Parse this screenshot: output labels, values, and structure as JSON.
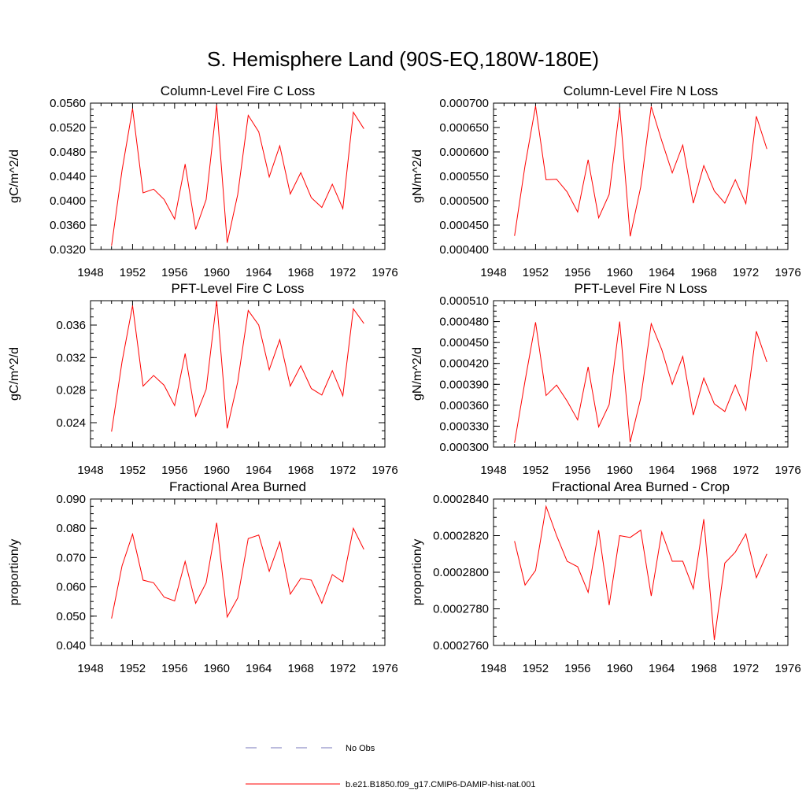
{
  "title": "S. Hemisphere Land (90S-EQ,180W-180E)",
  "legend": [
    {
      "label": "No Obs",
      "color": "#8888cc",
      "dash": true
    },
    {
      "label": "b.e21.B1850.f09_g17.CMIP6-DAMIP-hist-nat.001",
      "color": "#ff0000",
      "dash": false
    }
  ],
  "chart_data": [
    {
      "type": "line",
      "title": "Column-Level Fire C Loss",
      "ylabel": "gC/m^2/d",
      "xlim": [
        1948,
        1976
      ],
      "xticks": [
        "1948",
        "1952",
        "1956",
        "1960",
        "1964",
        "1968",
        "1972",
        "1976"
      ],
      "ylim": [
        0.032,
        0.056
      ],
      "yticks": [
        "0.0320",
        "0.0360",
        "0.0400",
        "0.0440",
        "0.0480",
        "0.0520",
        "0.0560"
      ],
      "yminor": 0.001,
      "x": [
        1950,
        1951,
        1952,
        1953,
        1954,
        1955,
        1956,
        1957,
        1958,
        1959,
        1960,
        1961,
        1962,
        1963,
        1964,
        1965,
        1966,
        1967,
        1968,
        1969,
        1970,
        1971,
        1972,
        1973,
        1974
      ],
      "series": [
        {
          "color": "#ff0000",
          "values": [
            0.0326,
            0.045,
            0.0551,
            0.0413,
            0.0419,
            0.0402,
            0.037,
            0.046,
            0.0353,
            0.0402,
            0.0557,
            0.0331,
            0.041,
            0.054,
            0.0513,
            0.0439,
            0.049,
            0.0411,
            0.0446,
            0.0405,
            0.0389,
            0.0427,
            0.0387,
            0.0545,
            0.0518
          ]
        }
      ]
    },
    {
      "type": "line",
      "title": "Column-Level Fire N Loss",
      "ylabel": "gN/m^2/d",
      "xlim": [
        1948,
        1976
      ],
      "xticks": [
        "1948",
        "1952",
        "1956",
        "1960",
        "1964",
        "1968",
        "1972",
        "1976"
      ],
      "ylim": [
        0.0004,
        0.0007
      ],
      "yticks": [
        "0.000400",
        "0.000450",
        "0.000500",
        "0.000550",
        "0.000600",
        "0.000650",
        "0.000700"
      ],
      "yminor": 1.25e-05,
      "x": [
        1950,
        1951,
        1952,
        1953,
        1954,
        1955,
        1956,
        1957,
        1958,
        1959,
        1960,
        1961,
        1962,
        1963,
        1964,
        1965,
        1966,
        1967,
        1968,
        1969,
        1970,
        1971,
        1972,
        1973,
        1974
      ],
      "series": [
        {
          "color": "#ff0000",
          "values": [
            0.000428,
            0.000572,
            0.000694,
            0.000543,
            0.000544,
            0.000518,
            0.000477,
            0.000584,
            0.000465,
            0.000513,
            0.000691,
            0.000427,
            0.000528,
            0.000693,
            0.000623,
            0.000557,
            0.000614,
            0.000495,
            0.000572,
            0.00052,
            0.000495,
            0.000543,
            0.000494,
            0.000673,
            0.000606
          ]
        }
      ]
    },
    {
      "type": "line",
      "title": "PFT-Level Fire C Loss",
      "ylabel": "gC/m^2/d",
      "xlim": [
        1948,
        1976
      ],
      "xticks": [
        "1948",
        "1952",
        "1956",
        "1960",
        "1964",
        "1968",
        "1972",
        "1976"
      ],
      "ylim": [
        0.021,
        0.039
      ],
      "yticks": [
        "0.024",
        "0.028",
        "0.032",
        "0.036"
      ],
      "ytickvals": [
        0.024,
        0.028,
        0.032,
        0.036
      ],
      "yminor": 0.001,
      "x": [
        1950,
        1951,
        1952,
        1953,
        1954,
        1955,
        1956,
        1957,
        1958,
        1959,
        1960,
        1961,
        1962,
        1963,
        1964,
        1965,
        1966,
        1967,
        1968,
        1969,
        1970,
        1971,
        1972,
        1973,
        1974
      ],
      "series": [
        {
          "color": "#ff0000",
          "values": [
            0.0229,
            0.0315,
            0.0384,
            0.0285,
            0.0298,
            0.0286,
            0.0261,
            0.0325,
            0.0248,
            0.0281,
            0.039,
            0.0233,
            0.029,
            0.0378,
            0.036,
            0.0305,
            0.0342,
            0.0285,
            0.031,
            0.0282,
            0.0274,
            0.0304,
            0.0273,
            0.038,
            0.0362
          ]
        }
      ]
    },
    {
      "type": "line",
      "title": "PFT-Level Fire N Loss",
      "ylabel": "gN/m^2/d",
      "xlim": [
        1948,
        1976
      ],
      "xticks": [
        "1948",
        "1952",
        "1956",
        "1960",
        "1964",
        "1968",
        "1972",
        "1976"
      ],
      "ylim": [
        0.0003,
        0.00051
      ],
      "yticks": [
        "0.000300",
        "0.000330",
        "0.000360",
        "0.000390",
        "0.000420",
        "0.000450",
        "0.000480",
        "0.000510"
      ],
      "yminor": 7.5e-06,
      "x": [
        1950,
        1951,
        1952,
        1953,
        1954,
        1955,
        1956,
        1957,
        1958,
        1959,
        1960,
        1961,
        1962,
        1963,
        1964,
        1965,
        1966,
        1967,
        1968,
        1969,
        1970,
        1971,
        1972,
        1973,
        1974
      ],
      "series": [
        {
          "color": "#ff0000",
          "values": [
            0.000306,
            0.000395,
            0.000479,
            0.000374,
            0.000389,
            0.000366,
            0.000339,
            0.000415,
            0.000329,
            0.000361,
            0.00048,
            0.000307,
            0.00037,
            0.000477,
            0.00044,
            0.00039,
            0.00043,
            0.000346,
            0.000399,
            0.000362,
            0.000351,
            0.000389,
            0.000353,
            0.000466,
            0.000422
          ]
        }
      ]
    },
    {
      "type": "line",
      "title": "Fractional Area Burned",
      "ylabel": "proportion/y",
      "xlim": [
        1948,
        1976
      ],
      "xticks": [
        "1948",
        "1952",
        "1956",
        "1960",
        "1964",
        "1968",
        "1972",
        "1976"
      ],
      "ylim": [
        0.04,
        0.09
      ],
      "yticks": [
        "0.040",
        "0.050",
        "0.060",
        "0.070",
        "0.080",
        "0.090"
      ],
      "yminor": 0.0025,
      "x": [
        1950,
        1951,
        1952,
        1953,
        1954,
        1955,
        1956,
        1957,
        1958,
        1959,
        1960,
        1961,
        1962,
        1963,
        1964,
        1965,
        1966,
        1967,
        1968,
        1969,
        1970,
        1971,
        1972,
        1973,
        1974
      ],
      "series": [
        {
          "color": "#ff0000",
          "values": [
            0.0492,
            0.0672,
            0.078,
            0.0623,
            0.0614,
            0.0565,
            0.0552,
            0.0687,
            0.0544,
            0.0614,
            0.0819,
            0.0497,
            0.0562,
            0.0765,
            0.0777,
            0.0653,
            0.0754,
            0.0575,
            0.0629,
            0.0623,
            0.0544,
            0.0642,
            0.0617,
            0.08,
            0.0728
          ]
        }
      ]
    },
    {
      "type": "line",
      "title": "Fractional Area Burned - Crop",
      "ylabel": "proportion/y",
      "xlim": [
        1948,
        1976
      ],
      "xticks": [
        "1948",
        "1952",
        "1956",
        "1960",
        "1964",
        "1968",
        "1972",
        "1976"
      ],
      "ylim": [
        0.000276,
        0.000284
      ],
      "yticks": [
        "0.0002760",
        "0.0002780",
        "0.0002800",
        "0.0002820",
        "0.0002840"
      ],
      "yminor": 5e-07,
      "x": [
        1950,
        1951,
        1952,
        1953,
        1954,
        1955,
        1956,
        1957,
        1958,
        1959,
        1960,
        1961,
        1962,
        1963,
        1964,
        1965,
        1966,
        1967,
        1968,
        1969,
        1970,
        1971,
        1972,
        1973,
        1974
      ],
      "series": [
        {
          "color": "#ff0000",
          "values": [
            0.0002817,
            0.0002793,
            0.0002801,
            0.0002836,
            0.000282,
            0.0002806,
            0.0002803,
            0.0002789,
            0.0002823,
            0.0002782,
            0.000282,
            0.0002819,
            0.0002823,
            0.0002787,
            0.0002822,
            0.0002806,
            0.0002806,
            0.0002791,
            0.0002829,
            0.0002763,
            0.0002805,
            0.0002811,
            0.0002821,
            0.0002797,
            0.000281
          ]
        }
      ]
    }
  ]
}
